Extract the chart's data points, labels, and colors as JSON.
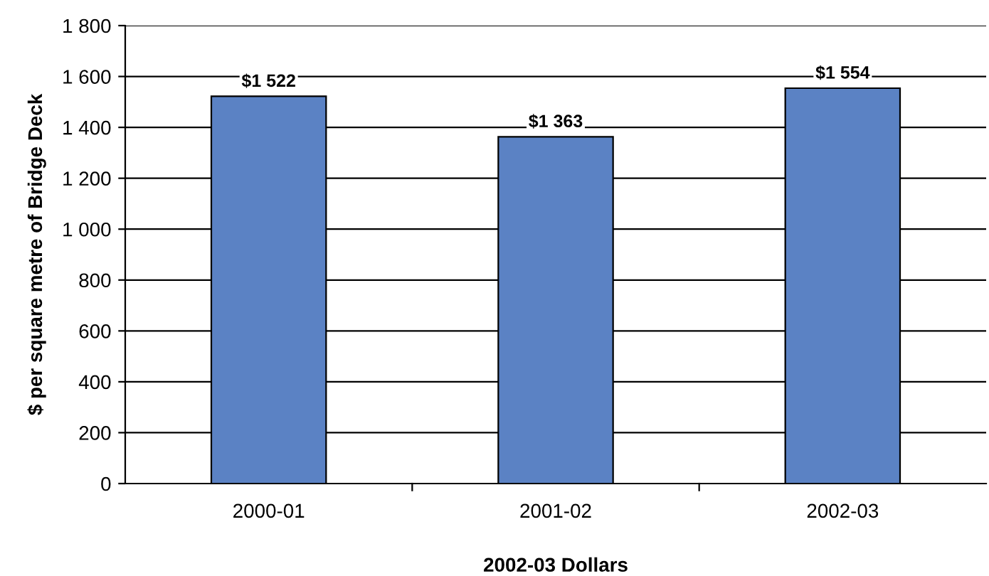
{
  "chart_data": {
    "type": "bar",
    "xlabel": "2002-03 Dollars",
    "ylabel": "$ per square metre of Bridge Deck",
    "categories": [
      "2000-01",
      "2001-02",
      "2002-03"
    ],
    "values": [
      1522,
      1363,
      1554
    ],
    "color": "#5b82c4",
    "value_labels": [
      "$1 522",
      "$1 363",
      "$1 554"
    ],
    "ylim": [
      0,
      1800
    ],
    "yticks": [
      0,
      200,
      400,
      600,
      800,
      {
        "value": 1000,
        "label": "1 000"
      },
      {
        "value": 1200,
        "label": "1 200"
      },
      {
        "value": 1400,
        "label": "1 400"
      },
      {
        "value": 1600,
        "label": "1 600"
      },
      {
        "value": 1800,
        "label": "1 800"
      }
    ],
    "grid": "y",
    "legend": false
  }
}
